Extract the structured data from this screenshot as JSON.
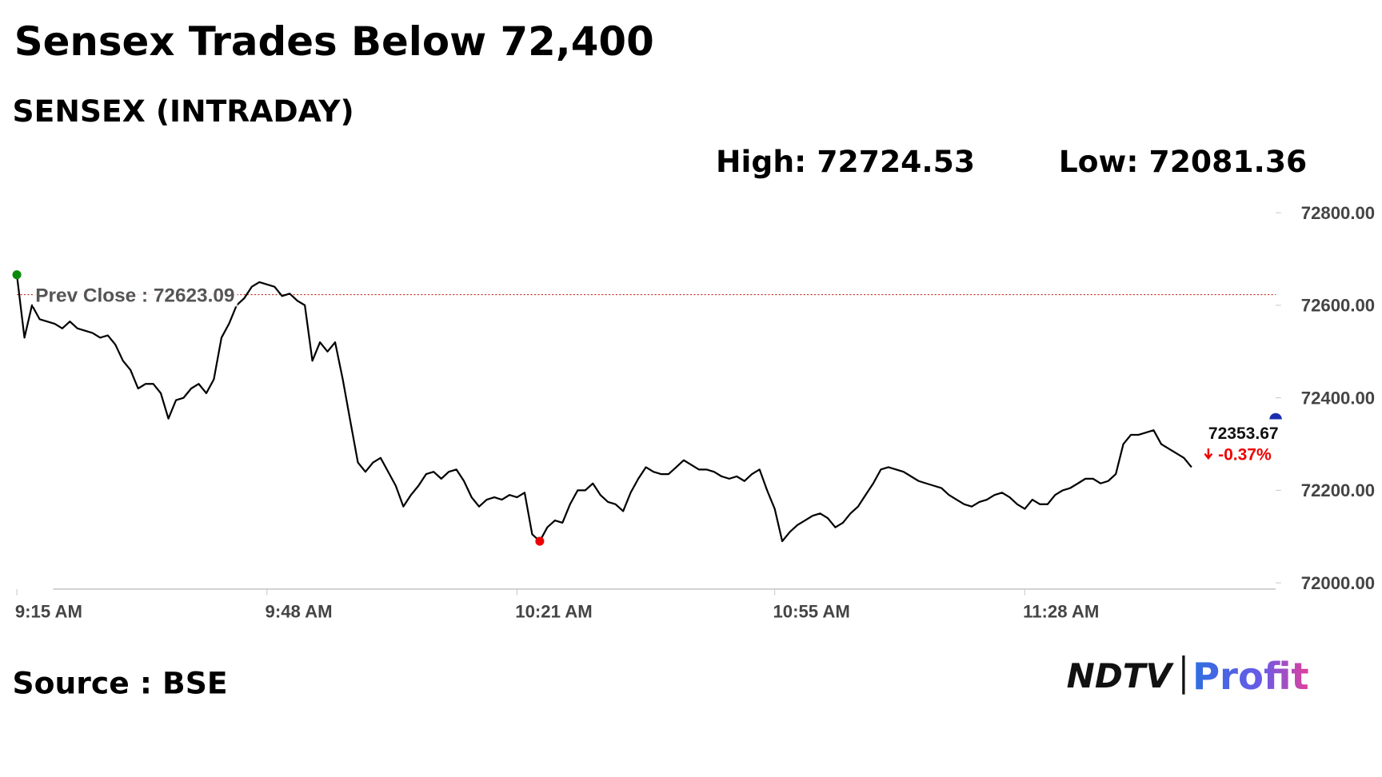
{
  "chart_data": {
    "type": "line",
    "title": "Sensex Trades Below 72,400",
    "subtitle": "SENSEX (INTRADAY)",
    "high": "High: 72724.53",
    "low": "Low: 72081.36",
    "prev_close": {
      "value": 72623.09,
      "label": "Prev Close : 72623.09"
    },
    "last_value": 72353.67,
    "change_label": "-0.37%",
    "source": "Source : BSE",
    "logo": {
      "brand": "NDTV",
      "product": "Profit"
    },
    "color": "#000000",
    "ylim": [
      72000,
      72800
    ],
    "yticks": [
      {
        "value": 72000,
        "label": "72000.00"
      },
      {
        "value": 72200,
        "label": "72200.00"
      },
      {
        "value": 72400,
        "label": "72400.00"
      },
      {
        "value": 72600,
        "label": "72600.00"
      },
      {
        "value": 72800,
        "label": "72800.00"
      }
    ],
    "categories": [
      "9:15 AM",
      null,
      null,
      null,
      null,
      null,
      null,
      null,
      null,
      null,
      null,
      null,
      null,
      null,
      null,
      null,
      null,
      null,
      null,
      null,
      null,
      null,
      null,
      null,
      null,
      null,
      null,
      null,
      null,
      null,
      null,
      null,
      null,
      "9:48 AM",
      null,
      null,
      null,
      null,
      null,
      null,
      null,
      null,
      null,
      null,
      null,
      null,
      null,
      null,
      null,
      null,
      null,
      null,
      null,
      null,
      null,
      null,
      null,
      null,
      null,
      null,
      null,
      null,
      null,
      null,
      null,
      null,
      "10:21 AM",
      null,
      null,
      null,
      null,
      null,
      null,
      null,
      null,
      null,
      null,
      null,
      null,
      null,
      null,
      null,
      null,
      null,
      null,
      null,
      null,
      null,
      null,
      null,
      null,
      null,
      null,
      null,
      null,
      null,
      null,
      null,
      null,
      null,
      "10:55 AM",
      null,
      null,
      null,
      null,
      null,
      null,
      null,
      null,
      null,
      null,
      null,
      null,
      null,
      null,
      null,
      null,
      null,
      null,
      null,
      null,
      null,
      null,
      null,
      null,
      null,
      null,
      null,
      null,
      null,
      null,
      null,
      null,
      "11:28 AM",
      null,
      null,
      null,
      null,
      null,
      null,
      null,
      null,
      null,
      null,
      null,
      null,
      null,
      null,
      null,
      null,
      null,
      null,
      null,
      null,
      null,
      null
    ],
    "values": [
      72666,
      72530,
      72600,
      72570,
      72565,
      72560,
      72550,
      72565,
      72550,
      72545,
      72540,
      72530,
      72535,
      72515,
      72480,
      72460,
      72420,
      72430,
      72430,
      72410,
      72355,
      72395,
      72400,
      72420,
      72430,
      72410,
      72440,
      72530,
      72560,
      72600,
      72615,
      72640,
      72650,
      72645,
      72640,
      72620,
      72625,
      72610,
      72600,
      72480,
      72520,
      72500,
      72520,
      72440,
      72350,
      72260,
      72240,
      72260,
      72270,
      72240,
      72210,
      72165,
      72190,
      72210,
      72235,
      72240,
      72225,
      72240,
      72245,
      72220,
      72185,
      72165,
      72180,
      72185,
      72180,
      72190,
      72185,
      72195,
      72105,
      72090,
      72120,
      72135,
      72130,
      72170,
      72200,
      72200,
      72215,
      72190,
      72175,
      72170,
      72155,
      72195,
      72225,
      72250,
      72240,
      72235,
      72235,
      72250,
      72265,
      72255,
      72245,
      72245,
      72240,
      72230,
      72225,
      72230,
      72220,
      72235,
      72245,
      72200,
      72160,
      72090,
      72110,
      72125,
      72135,
      72145,
      72150,
      72140,
      72120,
      72130,
      72150,
      72165,
      72190,
      72215,
      72245,
      72250,
      72245,
      72240,
      72230,
      72220,
      72215,
      72210,
      72205,
      72190,
      72180,
      72170,
      72165,
      72175,
      72180,
      72190,
      72195,
      72185,
      72170,
      72160,
      72180,
      72170,
      72170,
      72190,
      72200,
      72205,
      72215,
      72225,
      72225,
      72215,
      72220,
      72235,
      72300,
      72320,
      72320,
      72325,
      72330,
      72300,
      72290,
      72280,
      72270,
      72250
    ]
  }
}
